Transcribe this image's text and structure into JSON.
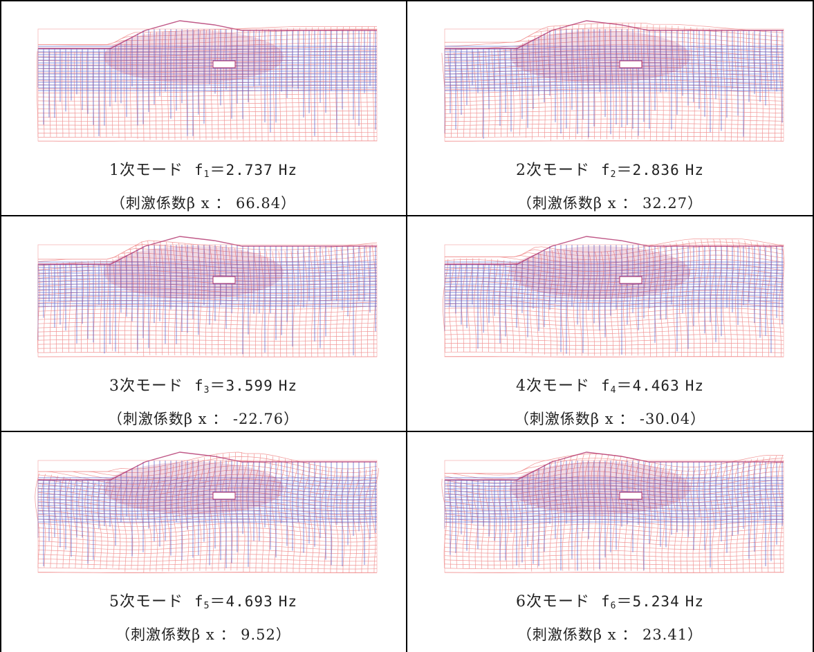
{
  "modes": [
    {
      "order": "1",
      "label": "次モード",
      "symbol": "f",
      "index": "1",
      "eq": "＝",
      "value": "2.737",
      "unit": "Hz",
      "factor_open": "（刺激係数",
      "beta": "β",
      "axis": "x",
      "colon": "：",
      "factor": "66.84",
      "factor_close": "）",
      "shape": "1"
    },
    {
      "order": "2",
      "label": "次モード",
      "symbol": "f",
      "index": "2",
      "eq": "＝",
      "value": "2.836",
      "unit": "Hz",
      "factor_open": "（刺激係数",
      "beta": "β",
      "axis": "x",
      "colon": "：",
      "factor": "32.27",
      "factor_close": "）",
      "shape": "2"
    },
    {
      "order": "3",
      "label": "次モード",
      "symbol": "f",
      "index": "3",
      "eq": "＝",
      "value": "3.599",
      "unit": "Hz",
      "factor_open": "（刺激係数",
      "beta": "β",
      "axis": "x",
      "colon": "：",
      "factor": "-22.76",
      "factor_close": "）",
      "shape": "3"
    },
    {
      "order": "4",
      "label": "次モード",
      "symbol": "f",
      "index": "4",
      "eq": "＝",
      "value": "4.463",
      "unit": "Hz",
      "factor_open": "（刺激係数",
      "beta": "β",
      "axis": "x",
      "colon": "：",
      "factor": "-30.04",
      "factor_close": "）",
      "shape": "4"
    },
    {
      "order": "5",
      "label": "次モード",
      "symbol": "f",
      "index": "5",
      "eq": "＝",
      "value": "4.693",
      "unit": "Hz",
      "factor_open": "（刺激係数",
      "beta": "β",
      "axis": "x",
      "colon": "：",
      "factor": "9.52",
      "factor_close": "）",
      "shape": "5"
    },
    {
      "order": "6",
      "label": "次モード",
      "symbol": "f",
      "index": "6",
      "eq": "＝",
      "value": "5.234",
      "unit": "Hz",
      "factor_open": "（刺激係数",
      "beta": "β",
      "axis": "x",
      "colon": "：",
      "factor": "23.41",
      "factor_close": "）",
      "shape": "6"
    }
  ],
  "colors": {
    "deformed_mesh": "#f08a8a",
    "undeformed_mesh": "#4a55c8",
    "overlap": "#b0306a",
    "border": "#000000"
  }
}
